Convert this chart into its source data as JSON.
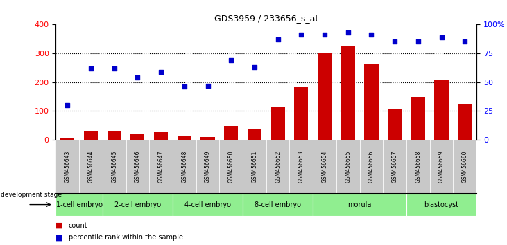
{
  "title": "GDS3959 / 233656_s_at",
  "samples": [
    "GSM456643",
    "GSM456644",
    "GSM456645",
    "GSM456646",
    "GSM456647",
    "GSM456648",
    "GSM456649",
    "GSM456650",
    "GSM456651",
    "GSM456652",
    "GSM456653",
    "GSM456654",
    "GSM456655",
    "GSM456656",
    "GSM456657",
    "GSM456658",
    "GSM456659",
    "GSM456660"
  ],
  "counts": [
    5,
    28,
    28,
    22,
    25,
    12,
    8,
    47,
    35,
    115,
    185,
    300,
    325,
    265,
    105,
    148,
    207,
    125
  ],
  "percentiles": [
    30,
    62,
    62,
    54,
    59,
    46,
    47,
    69,
    63,
    87,
    91,
    91,
    93,
    91,
    85,
    85,
    89,
    85
  ],
  "stages": [
    {
      "label": "1-cell embryo",
      "start": 0,
      "end": 2
    },
    {
      "label": "2-cell embryo",
      "start": 2,
      "end": 5
    },
    {
      "label": "4-cell embryo",
      "start": 5,
      "end": 8
    },
    {
      "label": "8-cell embryo",
      "start": 8,
      "end": 11
    },
    {
      "label": "morula",
      "start": 11,
      "end": 15
    },
    {
      "label": "blastocyst",
      "start": 15,
      "end": 18
    }
  ],
  "ylim_left": [
    0,
    400
  ],
  "ylim_right": [
    0,
    100
  ],
  "yticks_left": [
    0,
    100,
    200,
    300,
    400
  ],
  "yticks_right": [
    0,
    25,
    50,
    75,
    100
  ],
  "bar_color": "#CC0000",
  "dot_color": "#0000CC",
  "grey_color": "#c8c8c8",
  "green_color": "#90EE90",
  "label_count": "count",
  "label_percentile": "percentile rank within the sample"
}
